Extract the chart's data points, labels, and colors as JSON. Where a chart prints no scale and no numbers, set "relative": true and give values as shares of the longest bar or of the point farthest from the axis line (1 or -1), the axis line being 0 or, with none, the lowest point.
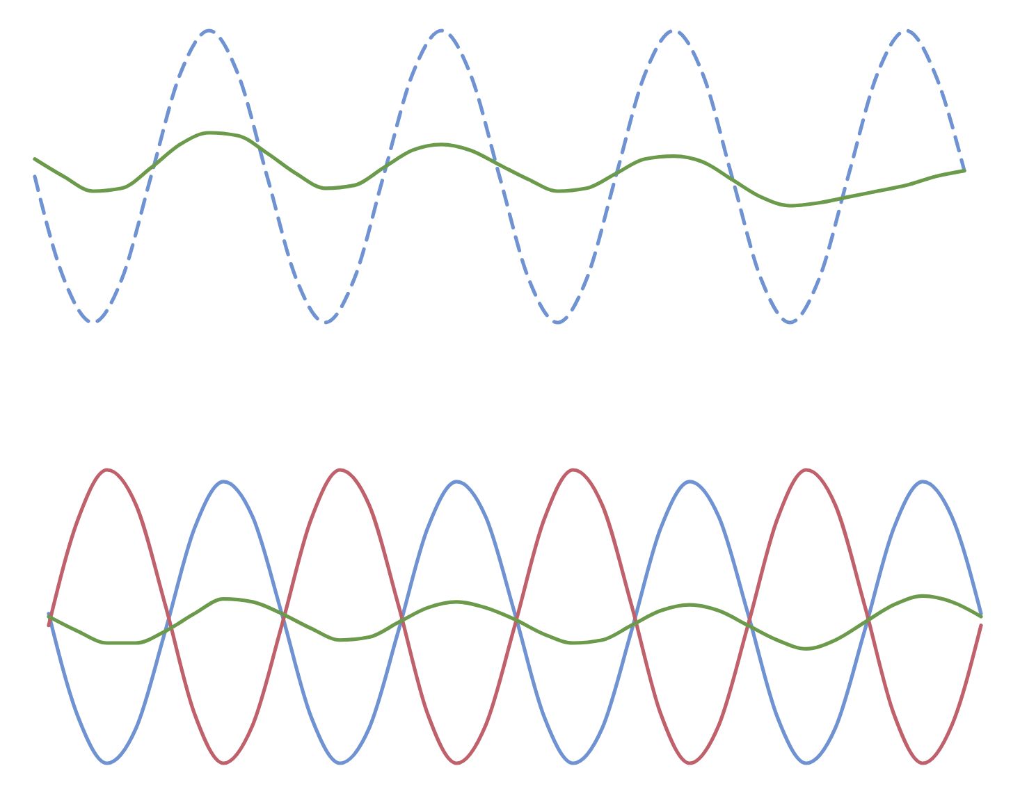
{
  "chart_data": [
    {
      "type": "line",
      "relative": true,
      "categories": [
        null,
        null,
        null,
        null,
        null,
        null,
        null,
        null,
        null,
        null,
        null,
        null,
        null,
        null,
        null,
        null,
        null,
        null,
        null,
        null,
        null,
        null,
        null,
        null,
        null,
        null,
        null,
        null,
        null,
        null,
        null,
        null,
        null
      ],
      "series": [
        {
          "color": "#6f93d2",
          "line_style": "dashed",
          "values": [
            0.5,
            0.15,
            0,
            0.15,
            0.5,
            0.85,
            1,
            0.85,
            0.5,
            0.15,
            0,
            0.15,
            0.5,
            0.85,
            1,
            0.85,
            0.5,
            0.15,
            0,
            0.15,
            0.5,
            0.85,
            1,
            0.85,
            0.5,
            0.15,
            0,
            0.15,
            0.5,
            0.85,
            1,
            0.85,
            0.52
          ]
        },
        {
          "color": "#6a9a4a",
          "line_style": "solid",
          "values": [
            0.56,
            0.5,
            0.45,
            0.46,
            0.53,
            0.61,
            0.65,
            0.64,
            0.58,
            0.51,
            0.46,
            0.47,
            0.53,
            0.59,
            0.61,
            0.59,
            0.54,
            0.49,
            0.45,
            0.46,
            0.51,
            0.56,
            0.57,
            0.55,
            0.49,
            0.43,
            0.4,
            0.41,
            0.43,
            0.45,
            0.47,
            0.5,
            0.52
          ]
        }
      ]
    },
    {
      "type": "line",
      "relative": true,
      "categories": [
        null,
        null,
        null,
        null,
        null,
        null,
        null,
        null,
        null,
        null,
        null,
        null,
        null,
        null,
        null,
        null,
        null,
        null,
        null,
        null,
        null,
        null,
        null,
        null,
        null,
        null,
        null,
        null,
        null,
        null,
        null,
        null,
        null
      ],
      "series": [
        {
          "color": "#6f93d2",
          "line_style": "solid",
          "values": [
            0.51,
            0.16,
            0,
            0.12,
            0.45,
            0.8,
            0.96,
            0.84,
            0.51,
            0.16,
            0,
            0.12,
            0.45,
            0.8,
            0.96,
            0.84,
            0.51,
            0.16,
            0,
            0.12,
            0.45,
            0.8,
            0.96,
            0.84,
            0.51,
            0.16,
            0,
            0.12,
            0.45,
            0.8,
            0.96,
            0.84,
            0.51
          ]
        },
        {
          "color": "#c0606a",
          "line_style": "solid",
          "values": [
            0.47,
            0.83,
            1,
            0.88,
            0.54,
            0.17,
            0,
            0.13,
            0.47,
            0.83,
            1,
            0.88,
            0.54,
            0.17,
            0,
            0.13,
            0.47,
            0.83,
            1,
            0.88,
            0.54,
            0.17,
            0,
            0.13,
            0.47,
            0.83,
            1,
            0.88,
            0.54,
            0.17,
            0,
            0.13,
            0.47
          ]
        },
        {
          "color": "#6a9a4a",
          "line_style": "solid",
          "values": [
            0.5,
            0.45,
            0.41,
            0.41,
            0.45,
            0.51,
            0.56,
            0.55,
            0.51,
            0.46,
            0.42,
            0.43,
            0.48,
            0.53,
            0.55,
            0.53,
            0.49,
            0.44,
            0.41,
            0.42,
            0.47,
            0.52,
            0.54,
            0.52,
            0.47,
            0.42,
            0.39,
            0.42,
            0.48,
            0.54,
            0.57,
            0.55,
            0.5
          ]
        }
      ]
    }
  ]
}
